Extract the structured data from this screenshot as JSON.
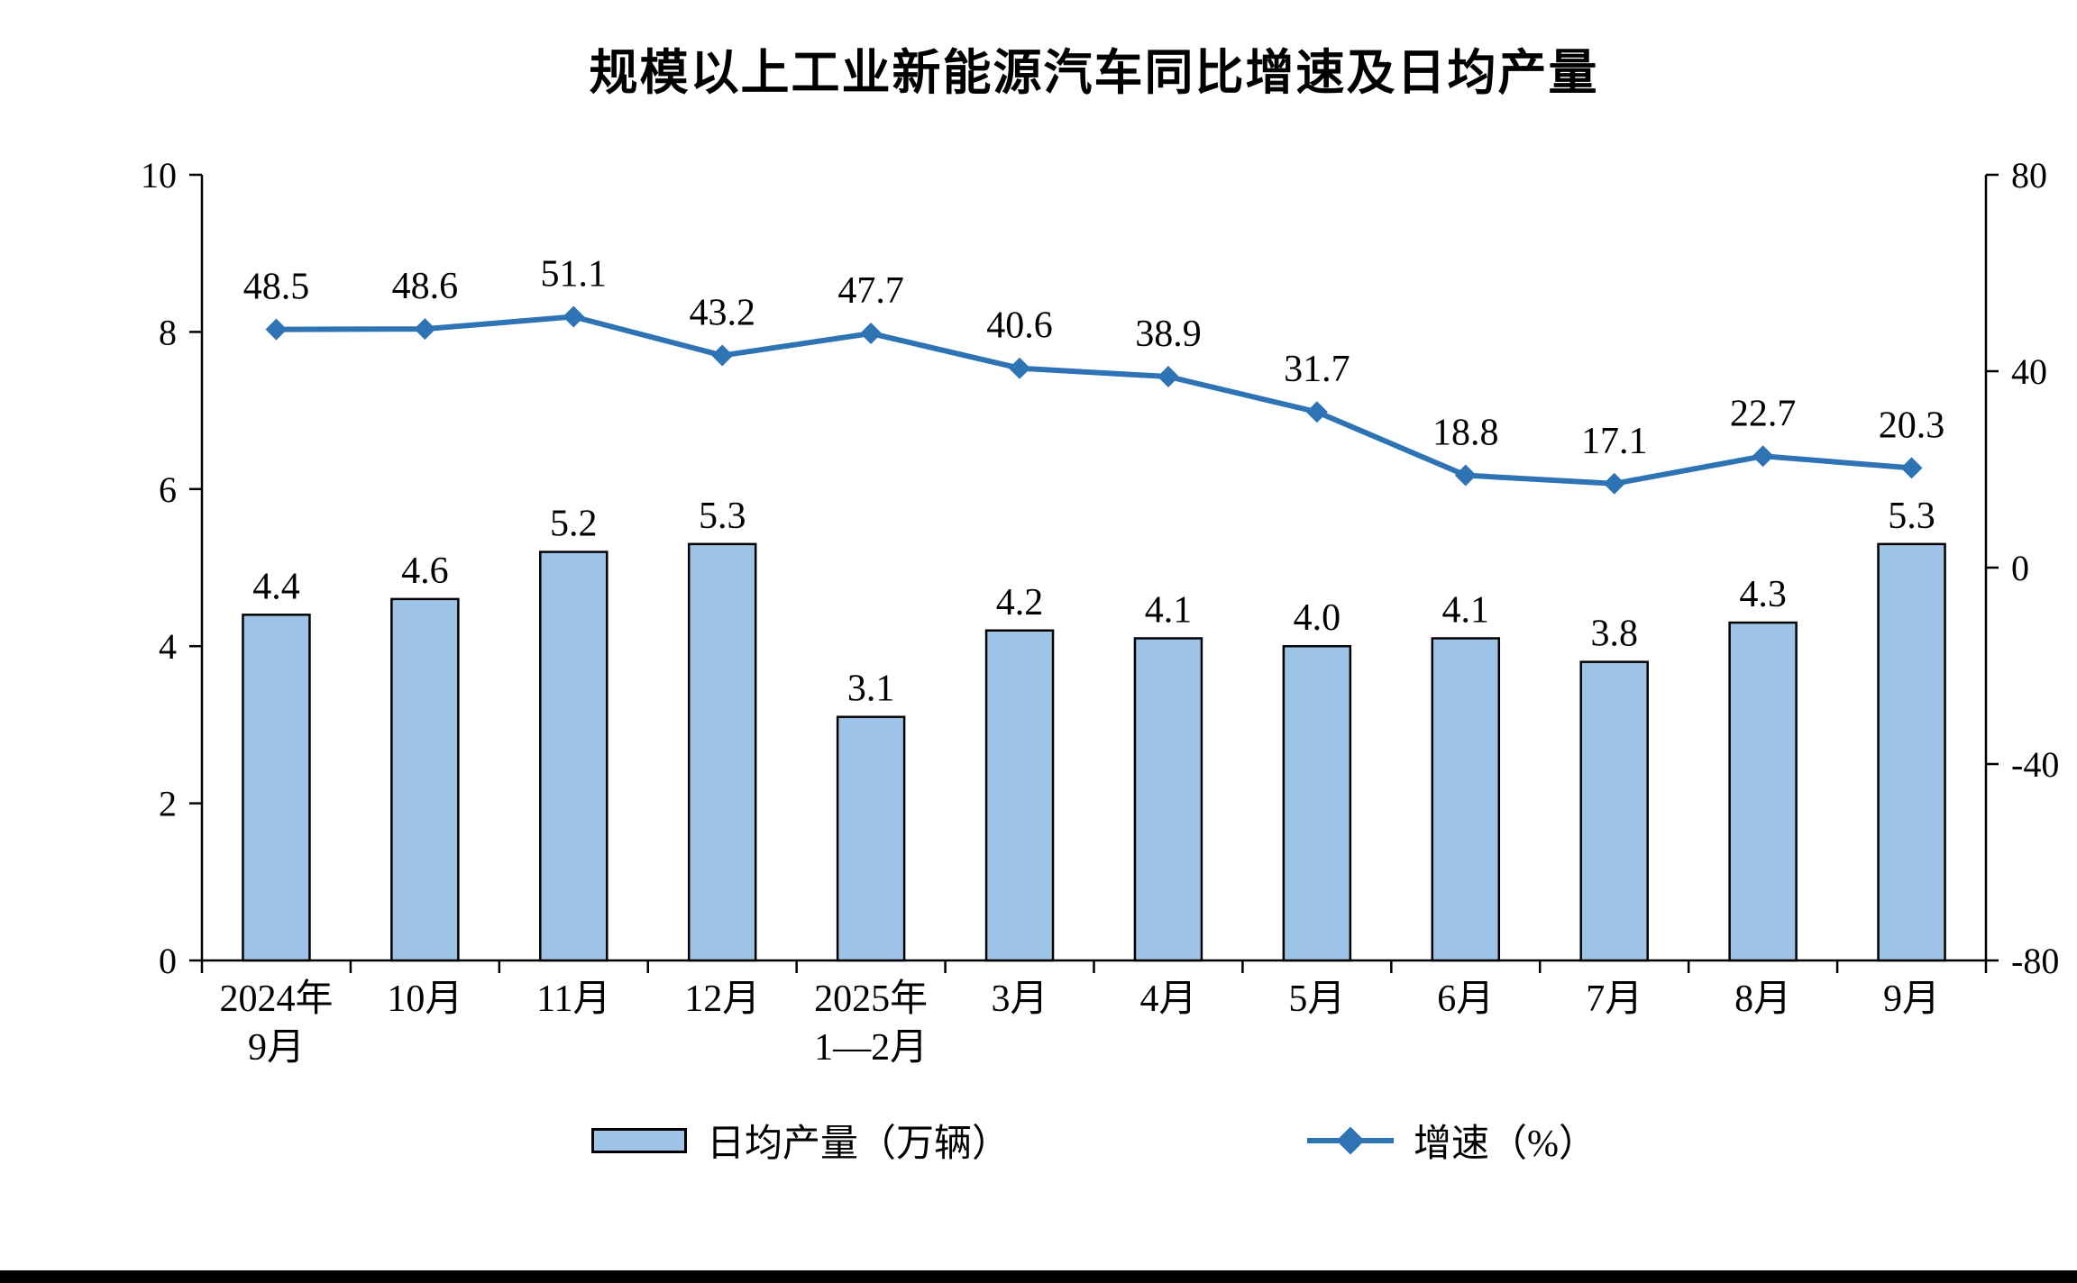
{
  "title": "规模以上工业新能源汽车同比增速及日均产量",
  "chart_data": {
    "type": "bar+line combo",
    "categories": [
      [
        "2024年",
        "9月"
      ],
      [
        "10月"
      ],
      [
        "11月"
      ],
      [
        "12月"
      ],
      [
        "2025年",
        "1—2月"
      ],
      [
        "3月"
      ],
      [
        "4月"
      ],
      [
        "5月"
      ],
      [
        "6月"
      ],
      [
        "7月"
      ],
      [
        "8月"
      ],
      [
        "9月"
      ]
    ],
    "series": [
      {
        "name": "日均产量（万辆）",
        "type": "bar",
        "axis": "left",
        "values": [
          4.4,
          4.6,
          5.2,
          5.3,
          3.1,
          4.2,
          4.1,
          4.0,
          4.1,
          3.8,
          4.3,
          5.3
        ]
      },
      {
        "name": "增速（%）",
        "type": "line",
        "axis": "right",
        "values": [
          48.5,
          48.6,
          51.1,
          43.2,
          47.7,
          40.6,
          38.9,
          31.7,
          18.8,
          17.1,
          22.7,
          20.3
        ]
      }
    ],
    "left_axis": {
      "min": 0,
      "max": 10,
      "ticks": [
        0,
        2,
        4,
        6,
        8,
        10
      ]
    },
    "right_axis": {
      "min": -80,
      "max": 80,
      "ticks": [
        -80,
        -40,
        0,
        40,
        80
      ]
    },
    "grid": "off",
    "legend_position": "bottom",
    "colors": {
      "bar_fill": "#9DC3E6",
      "bar_border": "#000000",
      "line": "#2E74B5",
      "text": "#000000"
    }
  },
  "legend": {
    "bar_label": "日均产量（万辆）",
    "line_label": "增速（%）"
  }
}
